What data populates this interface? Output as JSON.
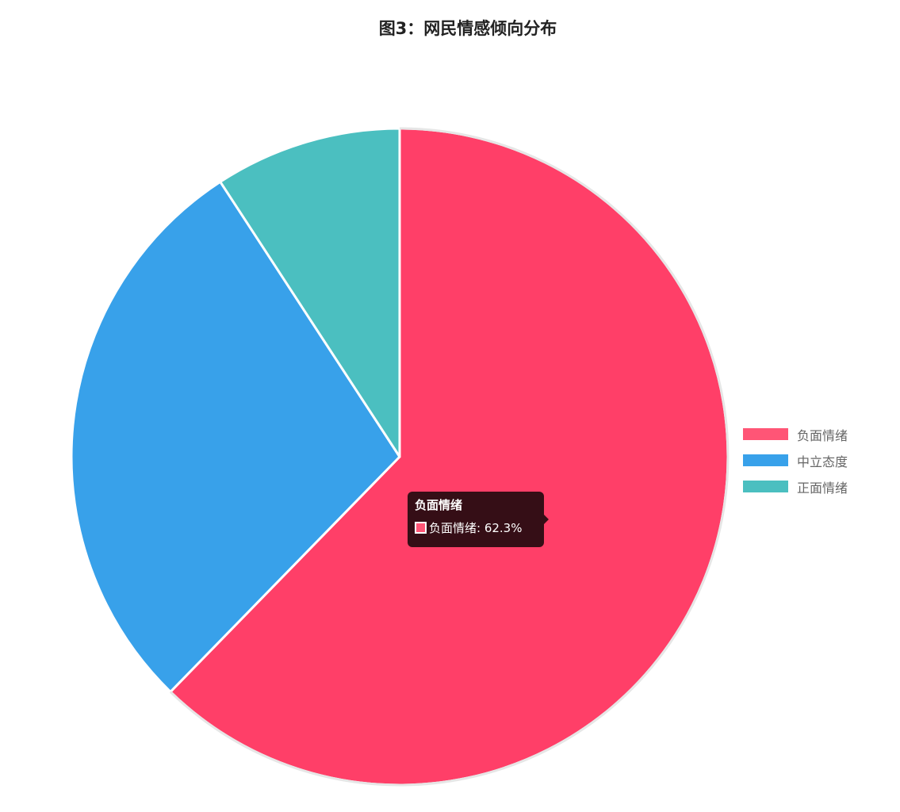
{
  "chart_data": {
    "type": "pie",
    "title": "图3：网民情感倾向分布",
    "categories": [
      "负面情绪",
      "中立态度",
      "正面情绪"
    ],
    "values": [
      62.3,
      28.5,
      9.2
    ],
    "unit": "%",
    "colors": [
      "#ff3f68",
      "#38a1ea",
      "#4bbfc0"
    ],
    "legend_position": "right",
    "legend": {
      "items": [
        {
          "label": "负面情绪",
          "color": "#ff5576"
        },
        {
          "label": "中立态度",
          "color": "#38a1ea"
        },
        {
          "label": "正面情绪",
          "color": "#4bbfc0"
        }
      ]
    },
    "tooltip": {
      "title": "负面情绪",
      "text": "负面情绪: 62.3%",
      "color": "#ff5576"
    }
  }
}
